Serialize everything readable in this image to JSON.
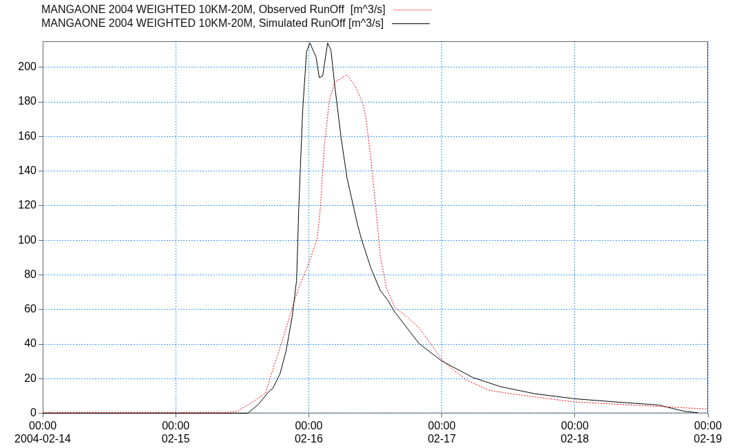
{
  "chart_data": {
    "type": "line",
    "legend": "top left",
    "grid": true,
    "xlim": [
      "2004-02-14T00:00",
      "2004-02-19T00:00"
    ],
    "xticks": [
      {
        "value": "2004-02-14T00:00",
        "label": "00:00\n2004-02-14"
      },
      {
        "value": "2004-02-15T00:00",
        "label": "00:00\n02-15"
      },
      {
        "value": "2004-02-16T00:00",
        "label": "00:00\n02-16"
      },
      {
        "value": "2004-02-17T00:00",
        "label": "00:00\n02-17"
      },
      {
        "value": "2004-02-18T00:00",
        "label": "00:00\n02-18"
      },
      {
        "value": "2004-02-19T00:00",
        "label": "00:00\n02-19"
      }
    ],
    "ylim": [
      0,
      215
    ],
    "yticks": [
      0,
      20,
      40,
      60,
      80,
      100,
      120,
      140,
      160,
      180,
      200
    ],
    "series": [
      {
        "name": "MANGAONE 2004 WEIGHTED 10KM-20M, Observed RunOff  [m^3/s]",
        "color": "#ff0000",
        "line_style": "dotted",
        "x": [
          "2004-02-14T00:00",
          "2004-02-15T09:00",
          "2004-02-15T11:00",
          "2004-02-15T13:12",
          "2004-02-15T16:12",
          "2004-02-15T17:06",
          "2004-02-15T19:12",
          "2004-02-15T21:12",
          "2004-02-15T22:12",
          "2004-02-16T00:00",
          "2004-02-16T01:30",
          "2004-02-16T02:06",
          "2004-02-16T02:48",
          "2004-02-16T03:42",
          "2004-02-16T04:42",
          "2004-02-16T06:54",
          "2004-02-16T08:24",
          "2004-02-16T09:42",
          "2004-02-16T10:18",
          "2004-02-16T11:12",
          "2004-02-16T12:06",
          "2004-02-16T12:54",
          "2004-02-16T14:00",
          "2004-02-16T15:30",
          "2004-02-16T17:42",
          "2004-02-16T19:54",
          "2004-02-16T22:00",
          "2004-02-17T00:00",
          "2004-02-17T01:00",
          "2004-02-17T04:24",
          "2004-02-17T08:30",
          "2004-02-17T12:36",
          "2004-02-17T18:48",
          "2004-02-18T00:00",
          "2004-02-18T07:18",
          "2004-02-18T15:36",
          "2004-02-18T23:48"
        ],
        "values": [
          0.5,
          0.5,
          1,
          5.2,
          11.5,
          21.3,
          41.7,
          62.8,
          72.6,
          86.7,
          100.7,
          119,
          154,
          180.8,
          191.4,
          195.6,
          189,
          179.4,
          171,
          147,
          119,
          90.9,
          72.6,
          61.4,
          55.8,
          49.4,
          40.3,
          31,
          28,
          19.4,
          13.3,
          11.3,
          8.6,
          6.6,
          5.3,
          3.9,
          2.5
        ]
      },
      {
        "name": "MANGAONE 2004 WEIGHTED 10KM-20M, Simulated RunOff [m^3/s]",
        "color": "#000000",
        "line_style": "solid",
        "x": [
          "2004-02-14T00:00",
          "2004-02-15T13:00",
          "2004-02-15T14:54",
          "2004-02-15T16:54",
          "2004-02-15T17:30",
          "2004-02-15T18:48",
          "2004-02-15T19:54",
          "2004-02-15T21:00",
          "2004-02-15T21:48",
          "2004-02-15T22:12",
          "2004-02-15T22:54",
          "2004-02-15T23:36",
          "2004-02-16T00:12",
          "2004-02-16T01:18",
          "2004-02-16T01:54",
          "2004-02-16T02:30",
          "2004-02-16T03:24",
          "2004-02-16T04:00",
          "2004-02-16T04:42",
          "2004-02-16T05:48",
          "2004-02-16T06:54",
          "2004-02-16T08:48",
          "2004-02-16T09:30",
          "2004-02-16T11:12",
          "2004-02-16T12:54",
          "2004-02-16T14:12",
          "2004-02-16T15:30",
          "2004-02-16T19:54",
          "2004-02-17T00:00",
          "2004-02-17T05:36",
          "2004-02-17T10:36",
          "2004-02-17T16:48",
          "2004-02-18T00:00",
          "2004-02-18T07:18",
          "2004-02-18T15:06",
          "2004-02-18T19:42",
          "2004-02-18T22:12"
        ],
        "values": [
          0,
          0,
          5.2,
          12.9,
          14.3,
          22.7,
          36,
          55.8,
          76.8,
          119,
          175,
          209,
          214,
          206,
          194,
          194.9,
          214,
          210,
          189,
          160,
          136,
          109,
          100.7,
          84,
          71,
          65.6,
          58.6,
          40.3,
          30.2,
          20.7,
          15.4,
          11.3,
          8.4,
          6.6,
          4.8,
          1.2,
          0.3
        ]
      }
    ]
  }
}
